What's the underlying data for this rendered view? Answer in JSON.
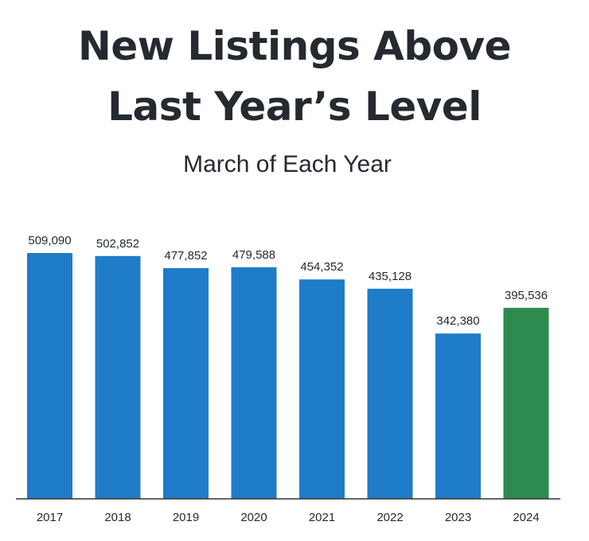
{
  "title_lines": [
    "New Listings Above",
    "Last Year’s Level"
  ],
  "subtitle": "March of Each Year",
  "colors": {
    "bar": "#1f7cc8",
    "highlight": "#2e8b4f",
    "axis": "#333333",
    "text": "#252a30"
  },
  "chart_data": {
    "type": "bar",
    "categories": [
      "2017",
      "2018",
      "2019",
      "2020",
      "2021",
      "2022",
      "2023",
      "2024"
    ],
    "values": [
      509090,
      502852,
      477852,
      479588,
      454352,
      435128,
      342380,
      395536
    ],
    "value_labels": [
      "509,090",
      "502,852",
      "477,852",
      "479,588",
      "454,352",
      "435,128",
      "342,380",
      "395,536"
    ],
    "highlight_category": "2024",
    "title": "New Listings Above Last Year’s Level",
    "subtitle": "March of Each Year",
    "xlabel": "",
    "ylabel": "",
    "ylim": [
      0,
      540000
    ],
    "grid": false,
    "legend": "none"
  }
}
